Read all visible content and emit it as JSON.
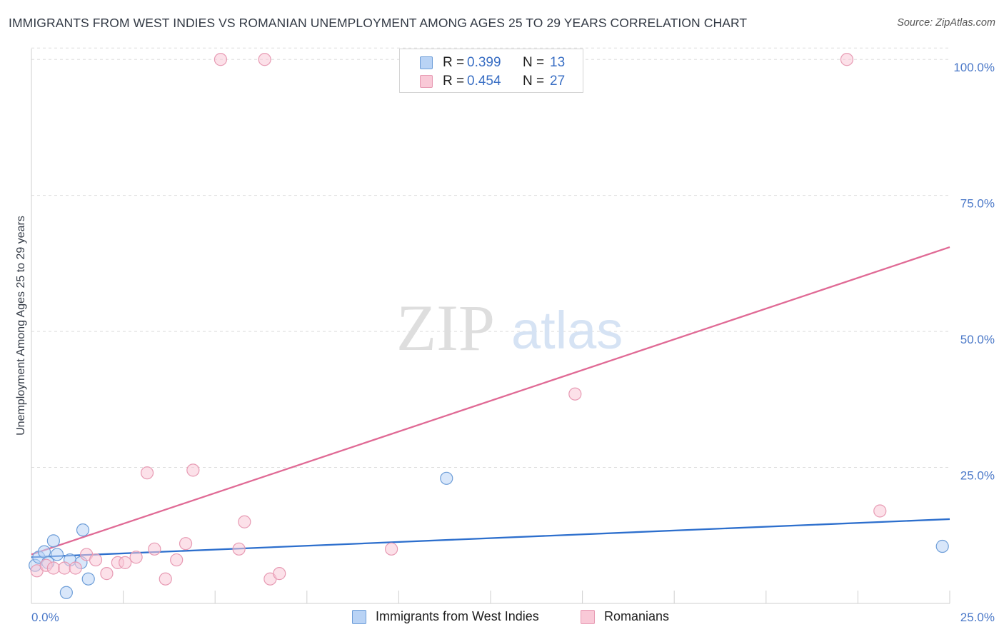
{
  "header": {
    "title": "IMMIGRANTS FROM WEST INDIES VS ROMANIAN UNEMPLOYMENT AMONG AGES 25 TO 29 YEARS CORRELATION CHART",
    "source": "Source: ZipAtlas.com"
  },
  "watermark": {
    "zip": "ZIP",
    "atlas": "atlas"
  },
  "colors": {
    "blue_fill": "#b9d3f5",
    "blue_stroke": "#6e9ed8",
    "blue_line": "#2d6fcd",
    "pink_fill": "#f9c9d7",
    "pink_stroke": "#e79ab3",
    "pink_line": "#e06a95",
    "tick_label": "#4a78c8",
    "grid": "#dddddd"
  },
  "legend": {
    "rows": [
      {
        "r_label": "R =",
        "r_value": "0.399",
        "n_label": "N =",
        "n_value": "13"
      },
      {
        "r_label": "R =",
        "r_value": "0.454",
        "n_label": "N =",
        "n_value": "27"
      }
    ]
  },
  "bottom_legend": {
    "items": [
      {
        "label": "Immigrants from West Indies"
      },
      {
        "label": "Romanians"
      }
    ]
  },
  "chart_data": {
    "type": "scatter",
    "title": "IMMIGRANTS FROM WEST INDIES VS ROMANIAN UNEMPLOYMENT AMONG AGES 25 TO 29 YEARS CORRELATION CHART",
    "xlabel": "",
    "ylabel": "Unemployment Among Ages 25 to 29 years",
    "xlim": [
      0,
      25
    ],
    "ylim": [
      0,
      102
    ],
    "x_tick_labels": [
      {
        "value": 0,
        "label": "0.0%"
      },
      {
        "value": 25,
        "label": "25.0%"
      }
    ],
    "y_tick_labels": [
      {
        "value": 25,
        "label": "25.0%"
      },
      {
        "value": 50,
        "label": "50.0%"
      },
      {
        "value": 75,
        "label": "75.0%"
      },
      {
        "value": 100,
        "label": "100.0%"
      }
    ],
    "series": [
      {
        "name": "Immigrants from West Indies",
        "color": "blue",
        "points": [
          [
            0.1,
            7.0
          ],
          [
            0.2,
            8.5
          ],
          [
            0.35,
            9.5
          ],
          [
            0.6,
            11.5
          ],
          [
            0.7,
            9.0
          ],
          [
            0.95,
            2.0
          ],
          [
            1.05,
            8.0
          ],
          [
            1.35,
            7.5
          ],
          [
            1.4,
            13.5
          ],
          [
            1.55,
            4.5
          ],
          [
            11.3,
            23.0
          ],
          [
            24.8,
            10.5
          ],
          [
            0.45,
            7.5
          ]
        ],
        "trend": {
          "x": [
            0,
            25
          ],
          "y": [
            8.5,
            15.5
          ]
        }
      },
      {
        "name": "Romanians",
        "color": "pink",
        "points": [
          [
            0.15,
            6.0
          ],
          [
            0.4,
            7.0
          ],
          [
            0.6,
            6.5
          ],
          [
            0.9,
            6.5
          ],
          [
            1.2,
            6.5
          ],
          [
            1.5,
            9.0
          ],
          [
            1.75,
            8.0
          ],
          [
            2.05,
            5.5
          ],
          [
            2.35,
            7.5
          ],
          [
            2.55,
            7.5
          ],
          [
            2.85,
            8.5
          ],
          [
            3.15,
            24.0
          ],
          [
            3.35,
            10.0
          ],
          [
            3.65,
            4.5
          ],
          [
            3.95,
            8.0
          ],
          [
            4.2,
            11.0
          ],
          [
            4.4,
            24.5
          ],
          [
            5.15,
            100.0
          ],
          [
            5.65,
            10.0
          ],
          [
            5.8,
            15.0
          ],
          [
            6.35,
            100.0
          ],
          [
            6.5,
            4.5
          ],
          [
            6.75,
            5.5
          ],
          [
            9.8,
            10.0
          ],
          [
            14.8,
            38.5
          ],
          [
            22.2,
            100.0
          ],
          [
            23.1,
            17.0
          ]
        ],
        "trend": {
          "x": [
            0,
            25
          ],
          "y": [
            9.0,
            65.5
          ]
        }
      }
    ],
    "legend_position": "top-center",
    "grid": true
  }
}
